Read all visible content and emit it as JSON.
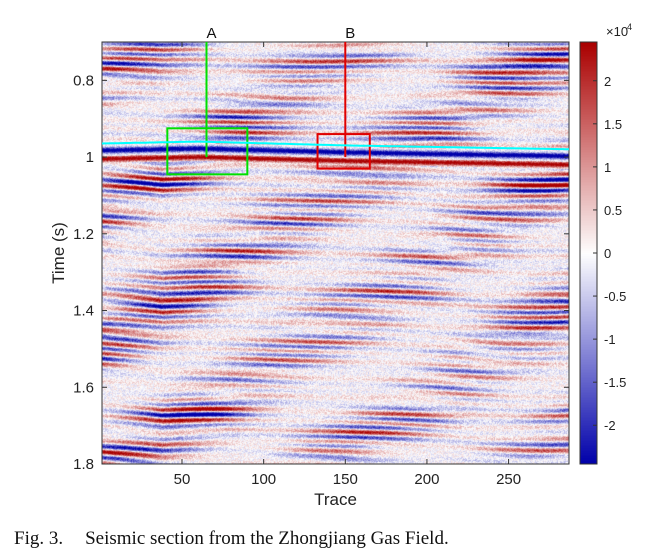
{
  "caption": {
    "label": "Fig. 3.",
    "text": "Seismic section from the Zhongjiang Gas Field."
  },
  "chart_data": {
    "type": "heatmap",
    "xlabel": "Trace",
    "ylabel": "Time (s)",
    "xlim": [
      1,
      287
    ],
    "ylim": [
      0.7,
      1.8
    ],
    "y_reversed": true,
    "xticks": [
      50,
      100,
      150,
      200,
      250
    ],
    "yticks": [
      0.8,
      1,
      1.2,
      1.4,
      1.6,
      1.8
    ],
    "colorbar": {
      "multiplier": "×10",
      "exponent": "4",
      "range": [
        -2.45,
        2.45
      ],
      "ticks": [
        2,
        1.5,
        1,
        0.5,
        0,
        -0.5,
        -1,
        -1.5,
        -2
      ],
      "colormap": [
        "#0000aa",
        "#ffffff",
        "#aa0000"
      ]
    },
    "annotations": [
      {
        "label": "A",
        "trace": 65,
        "line_end_time": 1.0,
        "box": {
          "traces": [
            41,
            90
          ],
          "times": [
            0.925,
            1.045
          ]
        },
        "color": "#00e000"
      },
      {
        "label": "B",
        "trace": 150,
        "line_end_time": 1.0,
        "box": {
          "traces": [
            133,
            165
          ],
          "times": [
            0.94,
            1.03
          ]
        },
        "color": "#e00000"
      }
    ],
    "horizon": {
      "color": "#00ffff",
      "times_at_traces": [
        [
          1,
          0.975
        ],
        [
          60,
          0.97
        ],
        [
          150,
          0.98
        ],
        [
          287,
          0.99
        ]
      ]
    }
  }
}
